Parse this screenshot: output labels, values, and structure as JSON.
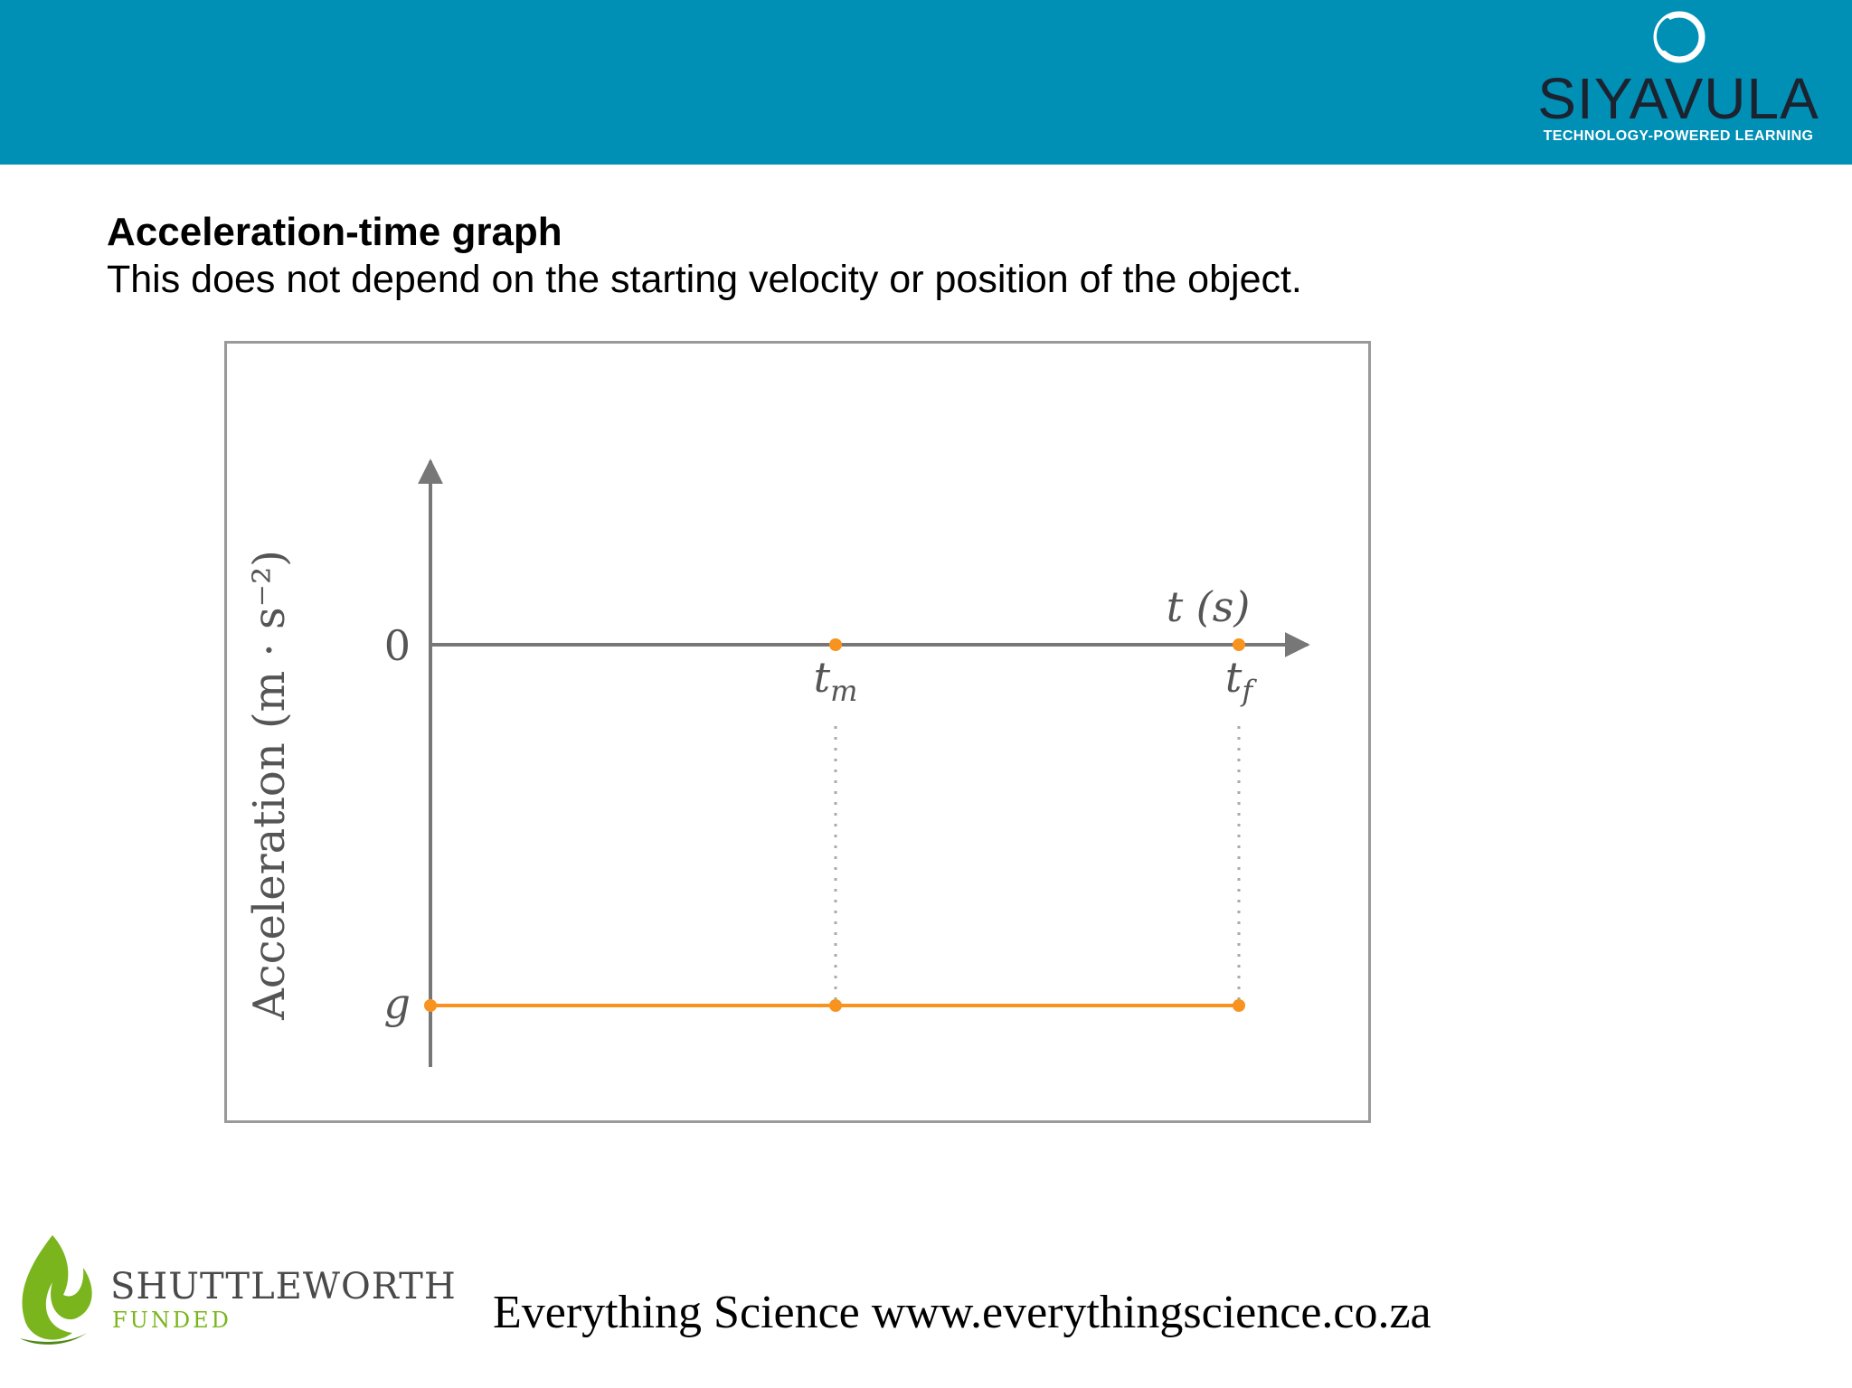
{
  "header": {
    "bar_color": "#008fb5",
    "logo_text": "SIYAVULA",
    "logo_tagline": "TECHNOLOGY-POWERED LEARNING",
    "logo_icon": "siyavula-ring-icon"
  },
  "slide": {
    "title": "Acceleration-time graph",
    "subtitle": "This does not depend on the starting velocity or position of the object."
  },
  "chart_data": {
    "type": "line",
    "ylabel": "Acceleration (m · s⁻²)",
    "xlabel": "t (s)",
    "x_ticks": [
      "0",
      "t_m",
      "t_f"
    ],
    "y_ticks": [
      "0",
      "g"
    ],
    "series": [
      {
        "points": [
          {
            "x": "0",
            "y": "g"
          },
          {
            "x": "t_m",
            "y": "g"
          },
          {
            "x": "t_f",
            "y": "g"
          }
        ]
      }
    ],
    "axis_markers": [
      "t_m",
      "t_f"
    ],
    "line_color": "#f7931e",
    "axis_color": "#777777",
    "dotted_guides": [
      "t_m",
      "t_f"
    ],
    "grid": false
  },
  "footer": {
    "sponsor_name": "SHUTTLEWORTH",
    "sponsor_sub": "FUNDED",
    "sponsor_icon": "flame-leaf-icon",
    "text": "Everything Science www.everythingscience.co.za",
    "sponsor_color": "#7ab51d"
  }
}
